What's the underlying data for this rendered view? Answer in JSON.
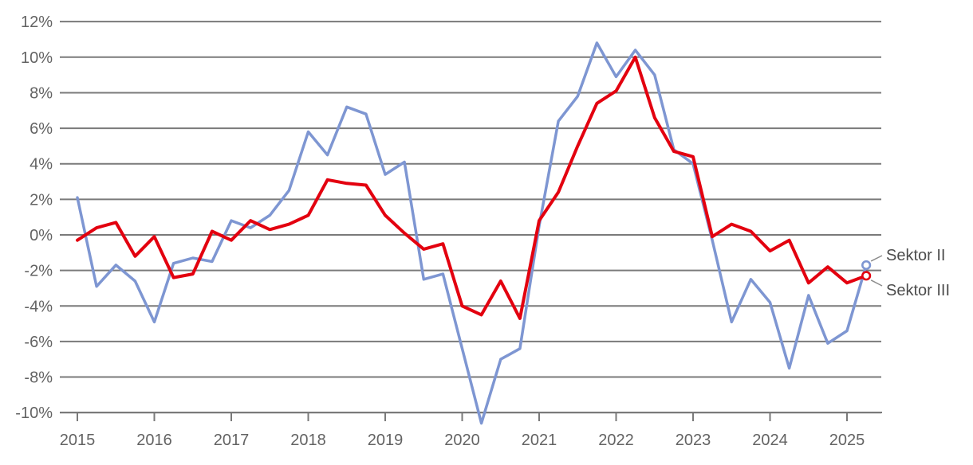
{
  "chart_data": {
    "type": "line",
    "title": "",
    "xlabel": "",
    "ylabel": "",
    "x_unit": "quarter",
    "x_start": 2015.0,
    "x_step": 0.25,
    "ylim": [
      -10,
      12
    ],
    "xlim": [
      2015,
      2025.25
    ],
    "grid": true,
    "legend_position": "end-of-line",
    "y_ticks": [
      {
        "label": "12%",
        "value": 12
      },
      {
        "label": "10%",
        "value": 10
      },
      {
        "label": "8%",
        "value": 8
      },
      {
        "label": "6%",
        "value": 6
      },
      {
        "label": "4%",
        "value": 4
      },
      {
        "label": "2%",
        "value": 2
      },
      {
        "label": "0%",
        "value": 0
      },
      {
        "label": "-2%",
        "value": -2
      },
      {
        "label": "-4%",
        "value": -4
      },
      {
        "label": "-6%",
        "value": -6
      },
      {
        "label": "-8%",
        "value": -8
      },
      {
        "label": "-10%",
        "value": -10
      }
    ],
    "x_ticks": [
      {
        "label": "2015",
        "value": 2015
      },
      {
        "label": "2016",
        "value": 2016
      },
      {
        "label": "2017",
        "value": 2017
      },
      {
        "label": "2018",
        "value": 2018
      },
      {
        "label": "2019",
        "value": 2019
      },
      {
        "label": "2020",
        "value": 2020
      },
      {
        "label": "2021",
        "value": 2021
      },
      {
        "label": "2022",
        "value": 2022
      },
      {
        "label": "2023",
        "value": 2023
      },
      {
        "label": "2024",
        "value": 2024
      },
      {
        "label": "2025",
        "value": 2025
      }
    ],
    "series": [
      {
        "name": "Sektor II",
        "color": "#7E96D2",
        "stroke_width": 3.5,
        "end_marker": "open-circle",
        "values": [
          2.1,
          -2.9,
          -1.7,
          -2.6,
          -4.9,
          -1.6,
          -1.3,
          -1.5,
          0.8,
          0.4,
          1.1,
          2.5,
          5.8,
          4.5,
          7.2,
          6.8,
          3.4,
          4.1,
          -2.5,
          -2.2,
          -6.4,
          -10.6,
          -7.0,
          -6.4,
          0.5,
          6.4,
          7.8,
          10.8,
          8.9,
          10.4,
          9.0,
          4.8,
          4.0,
          -0.3,
          -4.9,
          -2.5,
          -3.8,
          -7.5,
          -3.4,
          -6.1,
          -5.4,
          -1.7
        ]
      },
      {
        "name": "Sektor III",
        "color": "#E3000F",
        "stroke_width": 4,
        "end_marker": "open-circle",
        "values": [
          -0.3,
          0.4,
          0.7,
          -1.2,
          -0.1,
          -2.4,
          -2.2,
          0.2,
          -0.3,
          0.8,
          0.3,
          0.6,
          1.1,
          3.1,
          2.9,
          2.8,
          1.1,
          0.1,
          -0.8,
          -0.5,
          -4.0,
          -4.5,
          -2.6,
          -4.7,
          0.8,
          2.4,
          5.0,
          7.4,
          8.1,
          10.0,
          6.6,
          4.7,
          4.4,
          -0.1,
          0.6,
          0.2,
          -0.9,
          -0.3,
          -2.7,
          -1.8,
          -2.7,
          -2.3
        ]
      }
    ],
    "colors": {
      "gridline": "#7a7a7a",
      "axis": "#7a7a7a",
      "tick_label": "#636363",
      "end_label": "#4d4d4d",
      "leader_line": "#8c8c8c",
      "background": "#ffffff"
    }
  }
}
